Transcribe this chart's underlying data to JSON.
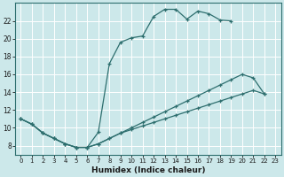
{
  "xlabel": "Humidex (Indice chaleur)",
  "bg_color": "#cce8ea",
  "grid_color": "#ffffff",
  "line_color": "#2d6e6e",
  "xlim": [
    -0.5,
    23.5
  ],
  "ylim": [
    7.0,
    24.0
  ],
  "xticks": [
    0,
    1,
    2,
    3,
    4,
    5,
    6,
    7,
    8,
    9,
    10,
    11,
    12,
    13,
    14,
    15,
    16,
    17,
    18,
    19,
    20,
    21,
    22,
    23
  ],
  "yticks": [
    8,
    10,
    12,
    14,
    16,
    18,
    20,
    22
  ],
  "curve1_x": [
    0,
    1,
    2,
    3,
    4,
    5,
    6,
    7,
    8,
    9,
    10,
    11,
    12,
    13,
    14,
    15,
    16,
    17,
    18,
    19
  ],
  "curve1_y": [
    11.0,
    10.4,
    9.4,
    8.8,
    8.2,
    7.8,
    7.8,
    9.5,
    17.2,
    19.6,
    20.1,
    20.3,
    22.5,
    23.3,
    23.3,
    22.2,
    23.1,
    22.8,
    22.1,
    22.0
  ],
  "curve2_x": [
    0,
    1,
    2,
    3,
    4,
    5,
    6,
    7,
    8,
    9,
    10,
    11,
    12,
    13,
    14,
    15,
    16,
    17,
    18,
    19,
    20,
    21,
    22
  ],
  "curve2_y": [
    11.0,
    10.4,
    9.4,
    8.8,
    8.2,
    7.8,
    7.8,
    8.2,
    8.8,
    9.4,
    10.0,
    10.6,
    11.2,
    11.8,
    12.4,
    13.0,
    13.6,
    14.2,
    14.8,
    15.4,
    16.0,
    15.6,
    13.8
  ],
  "curve3_x": [
    0,
    1,
    2,
    3,
    4,
    5,
    6,
    7,
    8,
    9,
    10,
    11,
    12,
    13,
    14,
    15,
    16,
    17,
    18,
    19,
    20,
    21,
    22
  ],
  "curve3_y": [
    11.0,
    10.4,
    9.4,
    8.8,
    8.2,
    7.8,
    7.8,
    8.2,
    8.8,
    9.4,
    9.8,
    10.2,
    10.6,
    11.0,
    11.4,
    11.8,
    12.2,
    12.6,
    13.0,
    13.4,
    13.8,
    14.2,
    13.8
  ]
}
